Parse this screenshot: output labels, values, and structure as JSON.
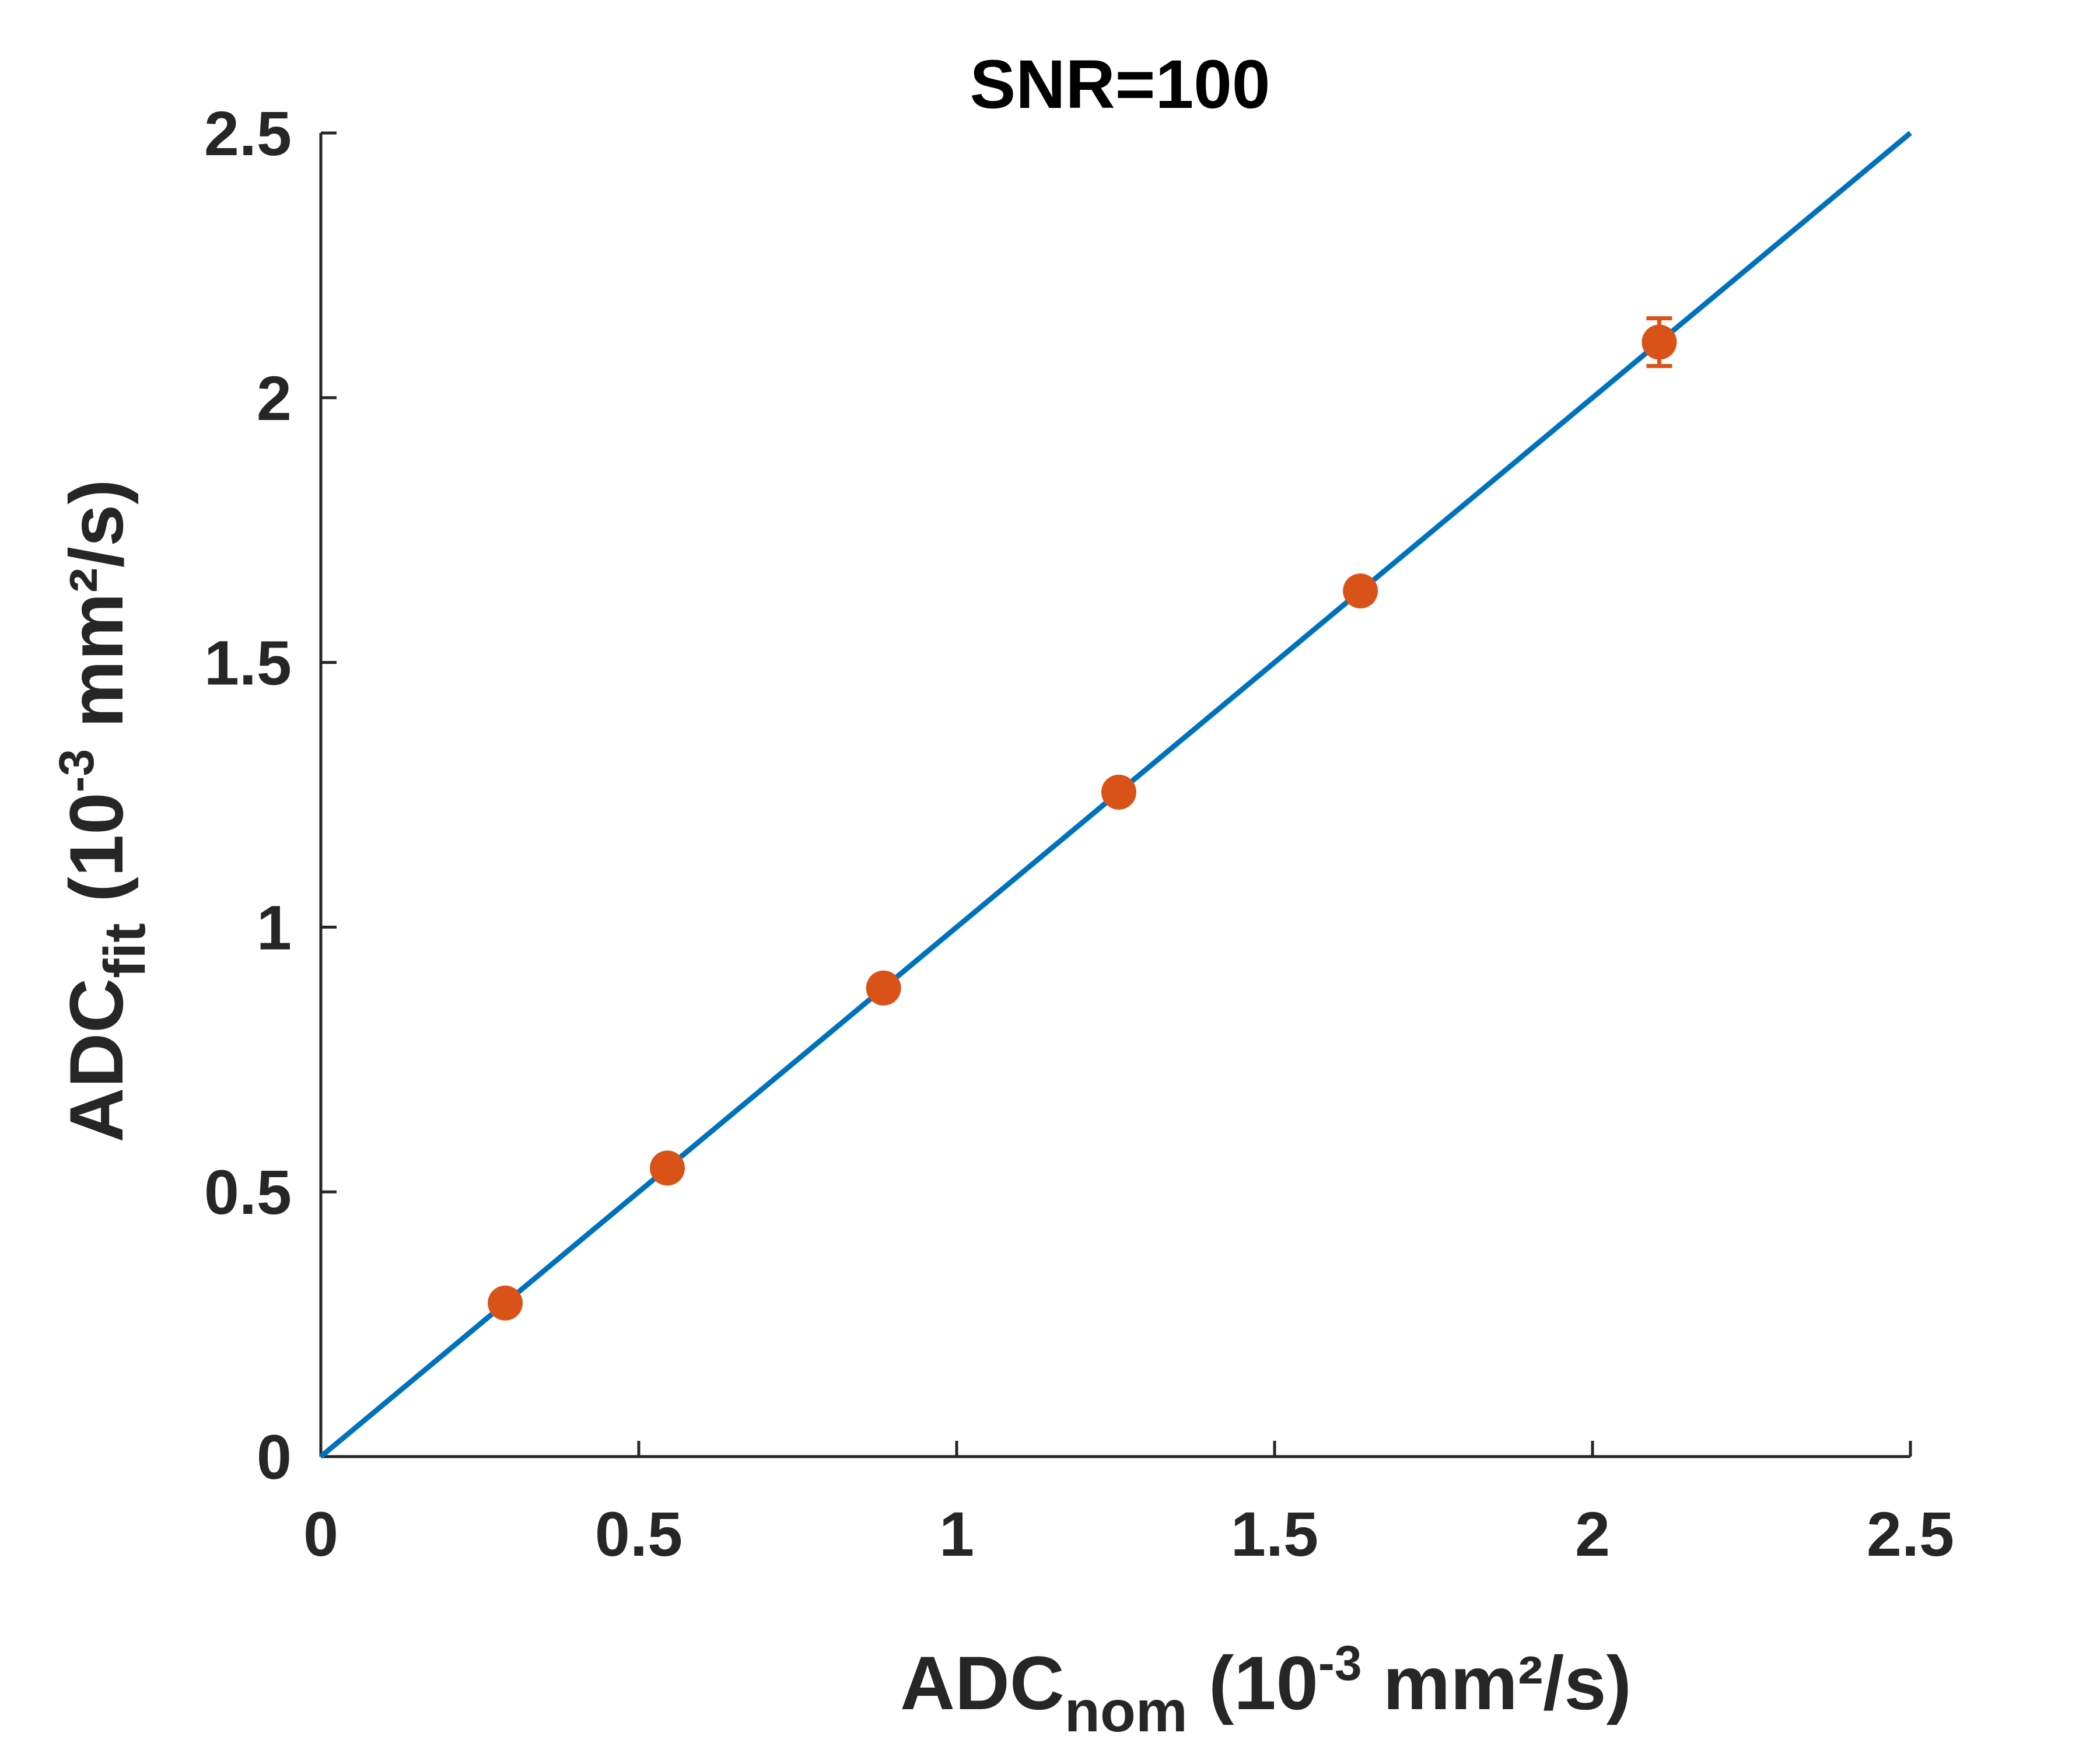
{
  "chart_data": {
    "type": "scatter",
    "title": "SNR=100",
    "xlabel": {
      "main": "ADC",
      "subscript": "nom",
      "prefix": " (10",
      "superscript": "-3",
      "suffix": " mm²/s)"
    },
    "ylabel": {
      "main": "ADC",
      "subscript": "fit",
      "prefix": " (10",
      "superscript": "-3",
      "suffix": " mm²/s)"
    },
    "xlim": [
      0,
      2.5
    ],
    "ylim": [
      0,
      2.5
    ],
    "xticks": [
      0,
      0.5,
      1,
      1.5,
      2,
      2.5
    ],
    "xtick_labels": [
      "0",
      "0.5",
      "1",
      "1.5",
      "2",
      "2.5"
    ],
    "yticks": [
      0,
      0.5,
      1,
      1.5,
      2,
      2.5
    ],
    "ytick_labels": [
      "0",
      "0.5",
      "1",
      "1.5",
      "2",
      "2.5"
    ],
    "grid": false,
    "series": [
      {
        "kind": "line",
        "color": "#0072BD",
        "x": [
          0,
          2.5
        ],
        "y": [
          0,
          2.5
        ]
      },
      {
        "kind": "errorbar",
        "color": "#D95319",
        "x": [
          0.29,
          0.545,
          0.885,
          1.255,
          1.635,
          2.105
        ],
        "y": [
          0.29,
          0.545,
          0.885,
          1.255,
          1.635,
          2.105
        ],
        "err": [
          0.005,
          0.006,
          0.008,
          0.012,
          0.02,
          0.045
        ]
      }
    ]
  }
}
